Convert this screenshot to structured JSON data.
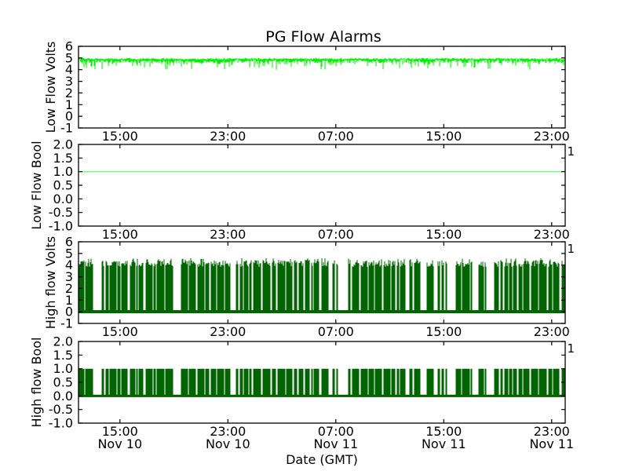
{
  "figure": {
    "title": "PG Flow Alarms",
    "xlabel": "Date (GMT)",
    "background": "#ffffff",
    "text_color": "#000000",
    "spine_color": "#000000"
  },
  "x_axis": {
    "domain_hours": [
      0,
      36.07
    ],
    "start_time": "Nov 10 ~12:00 GMT",
    "end_time": "Nov 11 ~23:50 GMT",
    "tick_hours": [
      3.07,
      11.07,
      19.07,
      27.07,
      35.07
    ],
    "tick_labels": [
      "15:00",
      "23:00",
      "07:00",
      "15:00",
      "23:00"
    ],
    "date_labels": [
      "Nov 10",
      "Nov 10",
      "Nov 11",
      "Nov 11",
      "Nov 11"
    ]
  },
  "chart_data": [
    {
      "type": "line",
      "ylabel": "Low Flow Volts",
      "ylim": [
        -1,
        6
      ],
      "ytick_values": [
        6,
        5,
        4,
        3,
        2,
        1,
        0,
        -1
      ],
      "ytick_labels": [
        "6",
        "5",
        "4",
        "3",
        "2",
        "1",
        "0",
        "-1"
      ],
      "line_color": "#00ee00",
      "right_annotation": "",
      "series": {
        "name": "Low Flow Volts",
        "pattern": "noisy_band",
        "top_value": 4.95,
        "typical_range": [
          4.5,
          5.0
        ],
        "dip_min": 4.0,
        "dip_probability": 0.33,
        "description": "continuous noisy signal near 4.8-5.0 V with frequent downward spikes to ~4.0-4.5 V across the whole time span"
      }
    },
    {
      "type": "line",
      "ylabel": "Low Flow Bool",
      "ylim": [
        -1,
        2
      ],
      "ytick_values": [
        2.0,
        1.5,
        1.0,
        0.5,
        0.0,
        -0.5,
        -1.0
      ],
      "ytick_labels": [
        "2.0",
        "1.5",
        "1.0",
        "0.5",
        "0.0",
        "-0.5",
        "-1.0"
      ],
      "line_color": "#90ee90",
      "right_annotation": "1",
      "series": {
        "name": "Low Flow Bool",
        "pattern": "constant",
        "value": 1.0,
        "description": "constant boolean value 1 for the whole time span"
      }
    },
    {
      "type": "line",
      "ylabel": "High flow Volts",
      "ylim": [
        -1,
        6
      ],
      "ytick_values": [
        6,
        5,
        4,
        3,
        2,
        1,
        0,
        -1
      ],
      "ytick_labels": [
        "6",
        "5",
        "4",
        "3",
        "2",
        "1",
        "0",
        "-1"
      ],
      "line_color": "#006400",
      "right_annotation": "1",
      "series": {
        "name": "High flow Volts",
        "pattern": "telegraph",
        "low_value": 0.0,
        "high_value_range": [
          3.85,
          4.6
        ],
        "duty_cycle": 0.72,
        "baseline_band": [
          -0.12,
          0.14
        ],
        "description": "dense square-wave signal toggling between ~0 V and ~4.0-4.6 V with thin white gaps and occasional wider gaps"
      }
    },
    {
      "type": "line",
      "ylabel": "High flow Bool",
      "ylim": [
        -1,
        2
      ],
      "ytick_values": [
        2.0,
        1.5,
        1.0,
        0.5,
        0.0,
        -0.5,
        -1.0
      ],
      "ytick_labels": [
        "2.0",
        "1.5",
        "1.0",
        "0.5",
        "0.0",
        "-0.5",
        "-1.0"
      ],
      "line_color": "#006400",
      "right_annotation": "1",
      "series": {
        "name": "High flow Bool",
        "pattern": "telegraph",
        "low_value": 0.0,
        "high_value": 1.0,
        "duty_cycle": 0.72,
        "baseline_band": [
          -0.045,
          0.045
        ],
        "description": "dense boolean square wave toggling between 0 and 1, matching the High flow Volts alarm pattern"
      }
    }
  ]
}
